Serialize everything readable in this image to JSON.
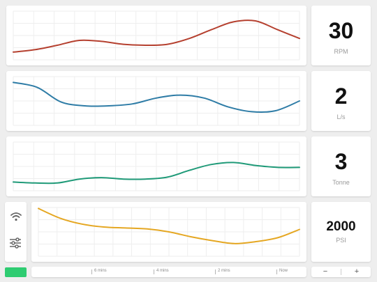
{
  "gauges": [
    {
      "id": "rpm",
      "value": "30",
      "unit": "RPM",
      "color": "#b5402f"
    },
    {
      "id": "flow",
      "value": "2",
      "unit": "L/s",
      "color": "#2e7ca6"
    },
    {
      "id": "load",
      "value": "3",
      "unit": "Tonne",
      "color": "#1f9a78"
    },
    {
      "id": "pressure",
      "value": "2000",
      "unit": "PSI",
      "color": "#e5a722"
    }
  ],
  "chart_data": [
    {
      "type": "line",
      "series": [
        {
          "values": [
            16,
            21,
            30,
            40,
            38,
            32,
            30,
            32,
            44,
            62,
            78,
            80,
            62,
            44
          ]
        }
      ],
      "ylim": [
        0,
        100
      ]
    },
    {
      "type": "line",
      "series": [
        {
          "values": [
            88,
            78,
            48,
            40,
            40,
            44,
            56,
            62,
            56,
            38,
            28,
            30,
            50
          ]
        }
      ],
      "ylim": [
        0,
        100
      ]
    },
    {
      "type": "line",
      "series": [
        {
          "values": [
            18,
            16,
            16,
            24,
            27,
            24,
            24,
            28,
            42,
            54,
            58,
            52,
            48,
            48
          ]
        }
      ],
      "ylim": [
        0,
        100
      ]
    },
    {
      "type": "line",
      "series": [
        {
          "values": [
            98,
            78,
            66,
            60,
            58,
            56,
            50,
            40,
            32,
            26,
            30,
            38,
            55
          ]
        }
      ],
      "ylim": [
        0,
        100
      ]
    }
  ],
  "timeline": {
    "ticks": [
      "6 mins",
      "4 mins",
      "2 mins",
      "Now"
    ]
  },
  "zoom": {
    "out_label": "−",
    "in_label": "+"
  },
  "icons": {
    "wifi": "wifi-icon",
    "settings": "sliders-icon"
  }
}
